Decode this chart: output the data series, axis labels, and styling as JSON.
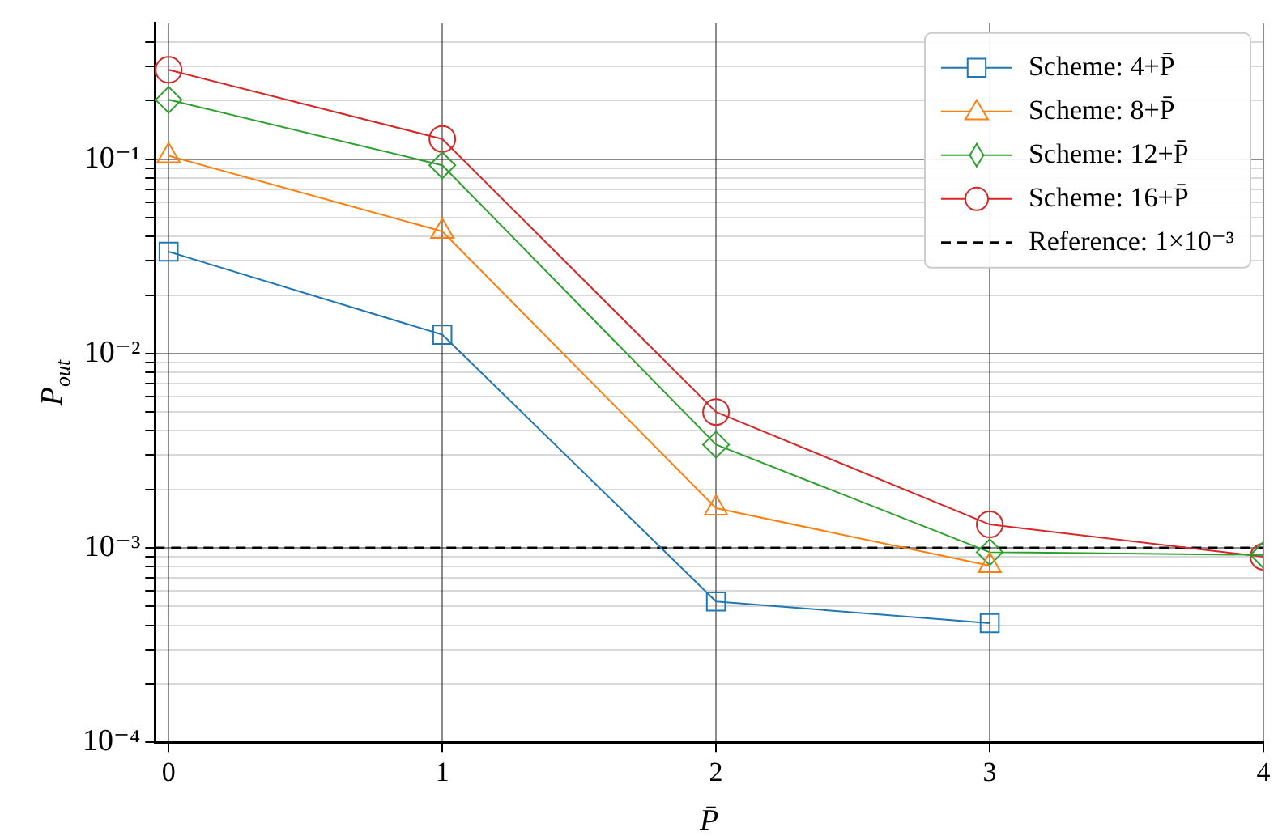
{
  "chart_data": {
    "type": "line",
    "xlabel": "P̄",
    "ylabel": "P$_{out}$",
    "log": "y",
    "grid": true,
    "legend": "top right",
    "x": [
      0,
      1,
      2,
      3,
      4
    ],
    "xlim": [
      -0.05,
      4
    ],
    "xticks": [
      0,
      1,
      2,
      3,
      4
    ],
    "ylim": [
      0.0001,
      0.5
    ],
    "yticks": [
      {
        "value": 0.0001,
        "label": "10⁻⁴"
      },
      {
        "value": 0.0002,
        "label": null
      },
      {
        "value": 0.0003,
        "label": null
      },
      {
        "value": 0.0004,
        "label": null
      },
      {
        "value": 0.0005,
        "label": null
      },
      {
        "value": 0.0006,
        "label": null
      },
      {
        "value": 0.0007,
        "label": null
      },
      {
        "value": 0.0008,
        "label": null
      },
      {
        "value": 0.0009,
        "label": null
      },
      {
        "value": 0.001,
        "label": "10⁻³"
      },
      {
        "value": 0.002,
        "label": null
      },
      {
        "value": 0.003,
        "label": null
      },
      {
        "value": 0.004,
        "label": null
      },
      {
        "value": 0.005,
        "label": null
      },
      {
        "value": 0.006,
        "label": null
      },
      {
        "value": 0.007,
        "label": null
      },
      {
        "value": 0.008,
        "label": null
      },
      {
        "value": 0.009,
        "label": null
      },
      {
        "value": 0.01,
        "label": "10⁻²"
      },
      {
        "value": 0.02,
        "label": null
      },
      {
        "value": 0.03,
        "label": null
      },
      {
        "value": 0.04,
        "label": null
      },
      {
        "value": 0.05,
        "label": null
      },
      {
        "value": 0.06,
        "label": null
      },
      {
        "value": 0.07,
        "label": null
      },
      {
        "value": 0.08,
        "label": null
      },
      {
        "value": 0.09,
        "label": null
      },
      {
        "value": 0.1,
        "label": "10⁻¹"
      },
      {
        "value": 0.2,
        "label": null
      },
      {
        "value": 0.3,
        "label": null
      },
      {
        "value": 0.4,
        "label": null
      }
    ],
    "series": [
      {
        "name": "Scheme: 4+P̄",
        "color": "#1f77b4",
        "marker": "square",
        "values": [
          0.0334,
          0.0125,
          0.00053,
          0.00041,
          null
        ]
      },
      {
        "name": "Scheme: 8+P̄",
        "color": "#ff7f0e",
        "marker": "triangle",
        "values": [
          0.104,
          0.0425,
          0.0016,
          0.00081,
          null
        ]
      },
      {
        "name": "Scheme: 12+P̄",
        "color": "#2ca02c",
        "marker": "diamond",
        "values": [
          0.202,
          0.093,
          0.0034,
          0.00095,
          0.00092
        ]
      },
      {
        "name": "Scheme: 16+P̄",
        "color": "#d62728",
        "marker": "circle",
        "values": [
          0.288,
          0.127,
          0.005,
          0.00132,
          0.0009
        ]
      }
    ],
    "ref_lines": [
      {
        "axis": "y",
        "value": 0.001,
        "label": "Reference: 1×10⁻³",
        "color": "#000000",
        "line_style": "dashed"
      }
    ]
  }
}
